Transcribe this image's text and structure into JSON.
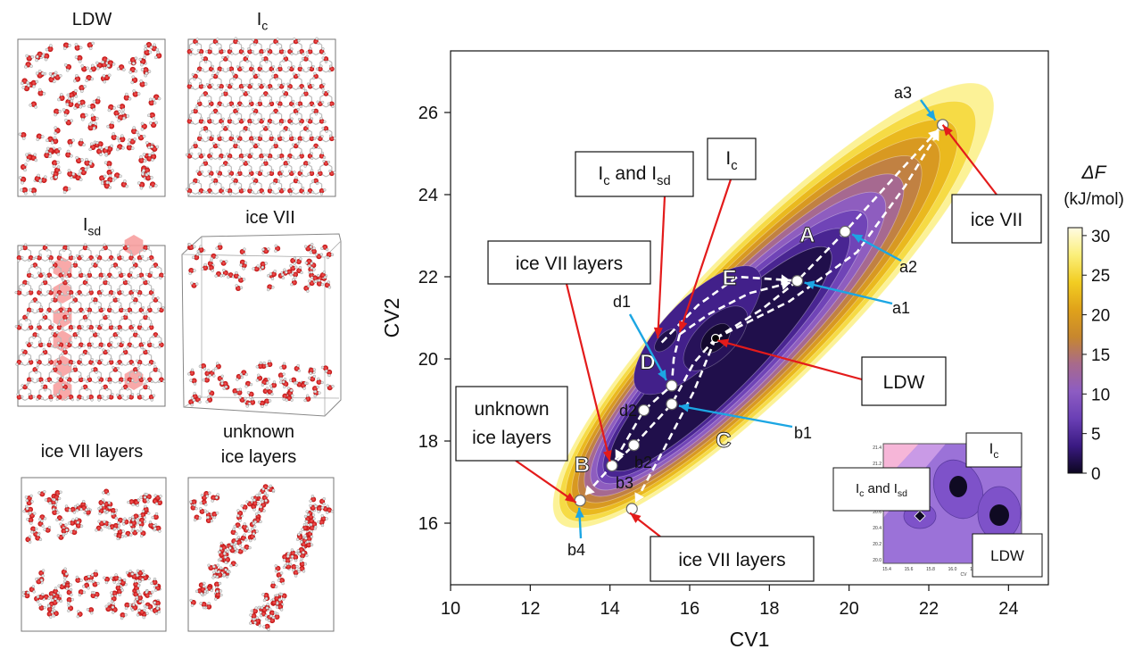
{
  "panels": [
    {
      "key": "ldw",
      "title": "LDW"
    },
    {
      "key": "ic",
      "title": "I",
      "sub": "c"
    },
    {
      "key": "isd",
      "title": "I",
      "sub": "sd"
    },
    {
      "key": "ice7",
      "title": "ice VII"
    },
    {
      "key": "layers",
      "title": "ice VII layers"
    },
    {
      "key": "unknown",
      "title_line1": "unknown",
      "title_line2": "ice layers"
    }
  ],
  "chart_data": {
    "type": "heatmap",
    "subtype": "free-energy contour map",
    "xlabel": "CV1",
    "ylabel": "CV2",
    "xlim": [
      10,
      25
    ],
    "ylim": [
      14.5,
      27.5
    ],
    "xticks": [
      10,
      12,
      14,
      16,
      18,
      20,
      22,
      24
    ],
    "yticks": [
      16,
      18,
      20,
      22,
      24,
      26
    ],
    "colorbar": {
      "title": "ΔF",
      "unit": "(kJ/mol)",
      "range": [
        0,
        31
      ],
      "ticks": [
        0,
        5,
        10,
        15,
        20,
        25,
        30
      ],
      "colors": [
        "#0c0620",
        "#3a1a82",
        "#6a3fb5",
        "#8d5cc2",
        "#a86a8c",
        "#c7872e",
        "#e0a21a",
        "#f2cd22",
        "#fbef7a",
        "#fffbe3"
      ]
    },
    "contour_levels": [
      30,
      27,
      24,
      21,
      18,
      15,
      12,
      9,
      6,
      3
    ],
    "minimum": {
      "x": 16.65,
      "y": 20.5,
      "label": "LDW"
    },
    "secondary_minima": [
      {
        "x": 15.75,
        "y": 20.6,
        "label": "Ic"
      },
      {
        "x": 15.3,
        "y": 20.4,
        "label": "Ic and Isd"
      }
    ],
    "points": [
      {
        "id": "a1",
        "x": 18.7,
        "y": 21.9
      },
      {
        "id": "a2",
        "x": 19.9,
        "y": 23.1
      },
      {
        "id": "a3",
        "x": 22.35,
        "y": 25.7
      },
      {
        "id": "b1",
        "x": 15.55,
        "y": 18.9
      },
      {
        "id": "b2",
        "x": 14.6,
        "y": 17.9
      },
      {
        "id": "b3",
        "x": 14.05,
        "y": 17.4
      },
      {
        "id": "b4",
        "x": 13.25,
        "y": 16.55
      },
      {
        "id": "d1",
        "x": 15.55,
        "y": 19.35
      },
      {
        "id": "d2",
        "x": 14.85,
        "y": 18.75
      },
      {
        "id": "c_end",
        "x": 14.55,
        "y": 16.35
      }
    ],
    "paths": [
      {
        "label": "A",
        "points": [
          [
            16.65,
            20.5
          ],
          [
            17.8,
            21.2
          ],
          [
            18.7,
            21.9
          ],
          [
            19.9,
            23.1
          ],
          [
            21.3,
            24.6
          ],
          [
            22.35,
            25.7
          ]
        ]
      },
      {
        "label": "A",
        "points": [
          [
            16.65,
            20.5
          ],
          [
            18.5,
            21.4
          ],
          [
            20.2,
            22.6
          ],
          [
            21.4,
            24.2
          ],
          [
            22.35,
            25.7
          ]
        ]
      },
      {
        "label": "B",
        "points": [
          [
            16.65,
            20.5
          ],
          [
            16.1,
            19.9
          ],
          [
            15.55,
            18.9
          ],
          [
            14.6,
            17.9
          ],
          [
            14.05,
            17.4
          ],
          [
            13.25,
            16.55
          ]
        ]
      },
      {
        "label": "C",
        "points": [
          [
            16.65,
            20.5
          ],
          [
            16.1,
            19.2
          ],
          [
            15.35,
            17.8
          ],
          [
            14.55,
            16.35
          ]
        ]
      },
      {
        "label": "D",
        "points": [
          [
            15.75,
            20.6
          ],
          [
            15.6,
            20.0
          ],
          [
            15.55,
            19.35
          ],
          [
            14.85,
            18.75
          ],
          [
            14.05,
            17.4
          ]
        ]
      },
      {
        "label": "E",
        "points": [
          [
            15.75,
            20.6
          ],
          [
            16.5,
            21.1
          ],
          [
            17.5,
            21.6
          ],
          [
            18.7,
            21.9
          ]
        ]
      },
      {
        "label": "E",
        "points": [
          [
            15.3,
            20.4
          ],
          [
            16.2,
            21.3
          ],
          [
            17.2,
            22.0
          ],
          [
            18.7,
            21.9
          ]
        ]
      }
    ],
    "path_labels": [
      {
        "text": "A",
        "x": 18.95,
        "y": 22.85
      },
      {
        "text": "E",
        "x": 17.0,
        "y": 21.8
      },
      {
        "text": "D",
        "x": 14.95,
        "y": 19.75
      },
      {
        "text": "C",
        "x": 16.85,
        "y": 17.85
      },
      {
        "text": "B",
        "x": 13.3,
        "y": 17.25
      }
    ],
    "callouts": [
      {
        "key": "ice7",
        "text": "ice VII",
        "target_x": 22.35,
        "target_y": 25.7
      },
      {
        "key": "ic",
        "main": "I",
        "sub": "c",
        "target_x": 15.75,
        "target_y": 20.65
      },
      {
        "key": "icisd",
        "main1": "I",
        "sub1": "c",
        "mid": " and I",
        "sub2": "sd",
        "target_x": 15.2,
        "target_y": 20.5
      },
      {
        "key": "layers_top",
        "text": "ice VII layers",
        "target_x": 14.0,
        "target_y": 17.5
      },
      {
        "key": "ldw",
        "text": "LDW",
        "target_x": 16.7,
        "target_y": 20.45
      },
      {
        "key": "unknown",
        "line1": "unknown",
        "line2": "ice layers",
        "target_x": 13.15,
        "target_y": 16.5
      },
      {
        "key": "layers_bottom",
        "text": "ice VII layers",
        "target_x": 14.5,
        "target_y": 16.25
      }
    ],
    "inset": {
      "xticks": [
        "15.4",
        "15.6",
        "15.8",
        "16.0",
        "16.2",
        "16.4",
        "16.6"
      ],
      "yticks": [
        "21.4",
        "21.2",
        "21.0",
        "20.8",
        "20.6",
        "20.4",
        "20.2",
        "20.0"
      ],
      "xlabel": "CV",
      "callouts": [
        {
          "key": "ic",
          "main": "I",
          "sub": "c"
        },
        {
          "key": "icisd",
          "main1": "I",
          "sub1": "c",
          "mid": " and I",
          "sub2": "sd"
        },
        {
          "key": "ldw",
          "text": "LDW"
        }
      ]
    }
  }
}
